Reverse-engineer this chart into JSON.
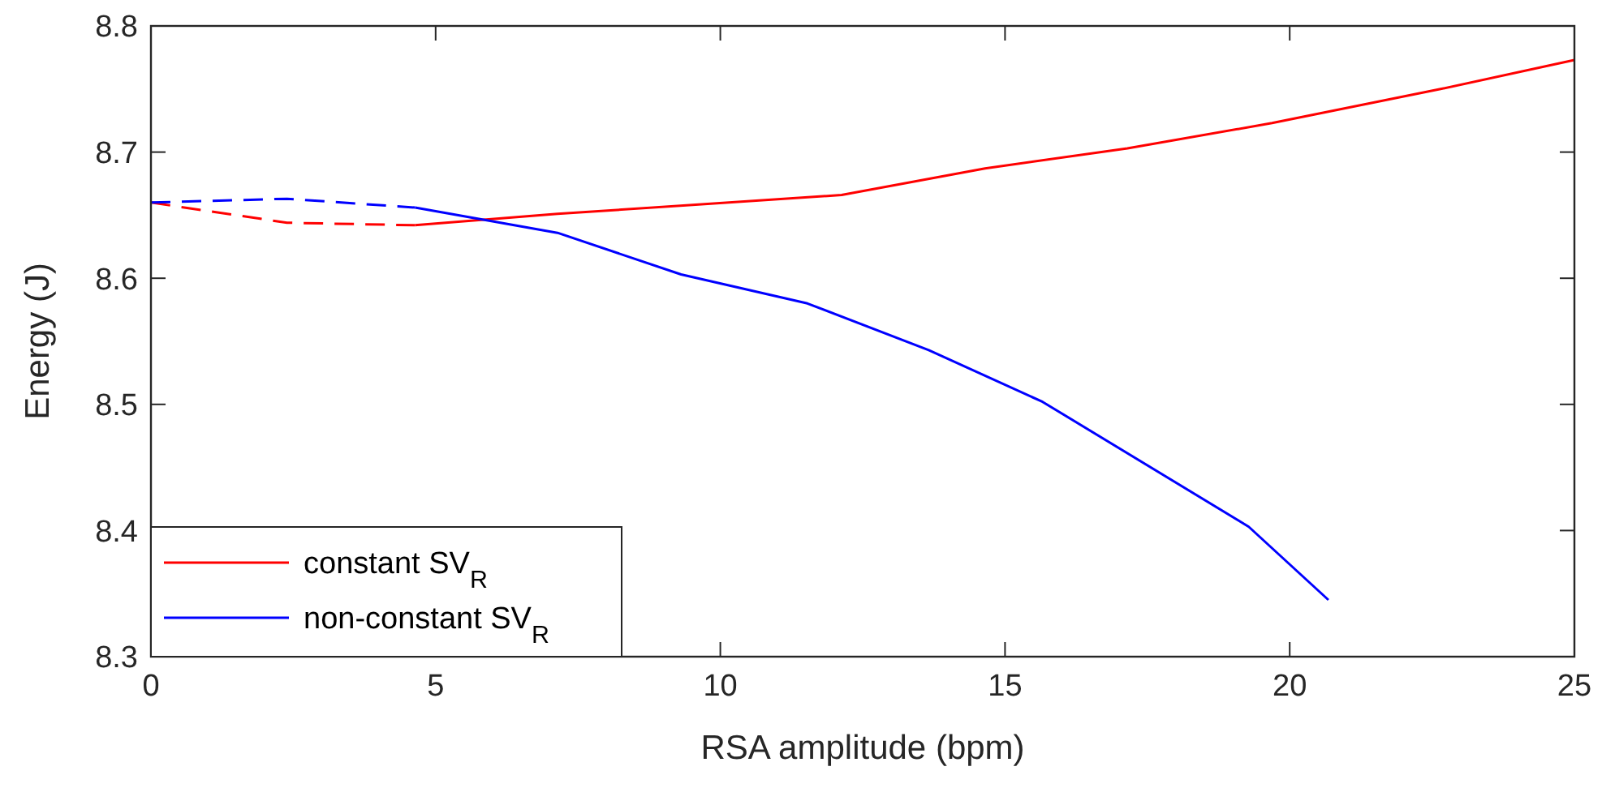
{
  "chart_data": {
    "type": "line",
    "xlabel": "RSA amplitude (bpm)",
    "ylabel": "Energy (J)",
    "xlim": [
      0,
      25
    ],
    "xticks": [
      0,
      5,
      10,
      15,
      20,
      25
    ],
    "ylim": [
      8.3,
      8.8
    ],
    "yticks": [
      8.3,
      8.4,
      8.5,
      8.6,
      8.7,
      8.8
    ],
    "grid": false,
    "legend": "bottom left",
    "line_style": "solid",
    "series": [
      {
        "name": "constant SV$_{R}$",
        "color": "#ff0000",
        "x": [
          4.64,
          7.14,
          12.13,
          14.65,
          17.15,
          19.69,
          22.65,
          25
        ],
        "values": [
          8.642,
          8.651,
          8.666,
          8.687,
          8.703,
          8.723,
          8.75,
          8.773
        ]
      },
      {
        "name": "non-constant SV$_{R}$",
        "color": "#0000ff",
        "x": [
          4.64,
          7.14,
          9.31,
          11.53,
          13.66,
          15.66,
          19.28,
          20.68
        ],
        "values": [
          8.656,
          8.636,
          8.603,
          8.58,
          8.543,
          8.502,
          8.403,
          8.345
        ]
      },
      {
        "color": "#ff0000",
        "line_style": "dashed",
        "x": [
          0,
          2.39,
          4.64
        ],
        "values": [
          8.66,
          8.644,
          8.642
        ]
      },
      {
        "color": "#0000ff",
        "line_style": "dashed",
        "x": [
          0,
          2.39,
          4.64
        ],
        "values": [
          8.66,
          8.663,
          8.656
        ]
      }
    ]
  }
}
